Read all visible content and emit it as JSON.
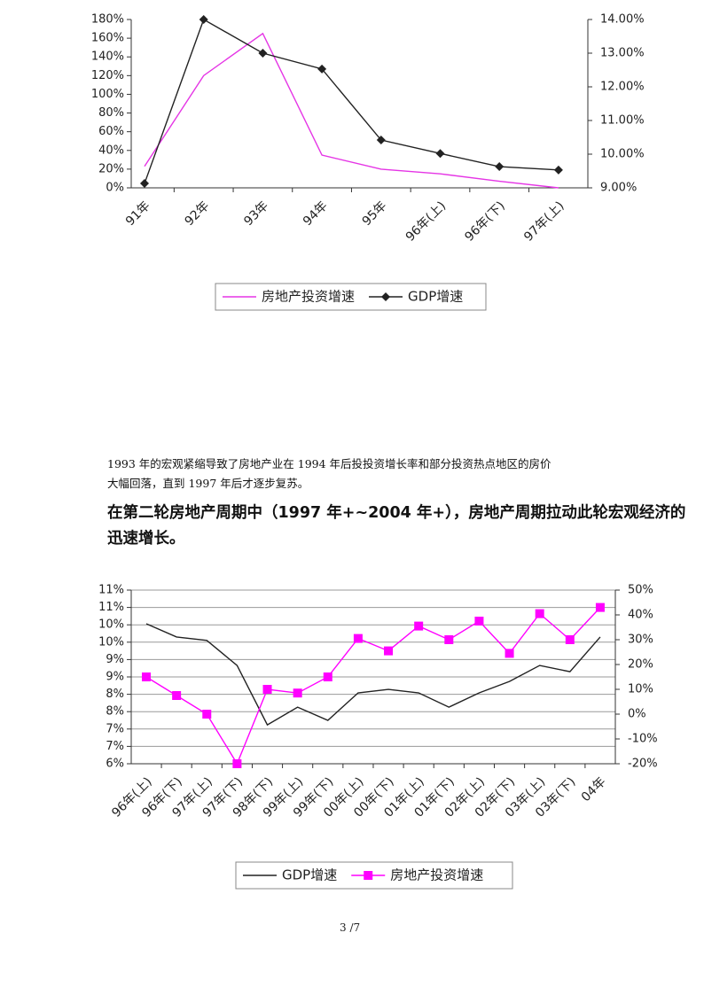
{
  "chart_data": [
    {
      "type": "line",
      "categories": [
        "91年",
        "92年",
        "93年",
        "94年",
        "95年",
        "96年(上)",
        "96年(下)",
        "97年(上)"
      ],
      "series": [
        {
          "name": "房地产投资增速",
          "color": "#e535e5",
          "values": [
            23,
            120,
            165,
            35,
            20,
            15,
            7,
            0
          ]
        },
        {
          "name": "GDP增速",
          "color": "#222222",
          "marker": "diamond",
          "axis": "y2",
          "values": [
            9.13,
            14.0,
            13.0,
            12.53,
            10.42,
            10.02,
            9.63,
            9.53
          ]
        }
      ],
      "ylim": [
        0,
        180
      ],
      "yticks": [
        {
          "value": 0,
          "label": "0%"
        },
        {
          "value": 20,
          "label": "20%"
        },
        {
          "value": 40,
          "label": "40%"
        },
        {
          "value": 60,
          "label": "60%"
        },
        {
          "value": 80,
          "label": "80%"
        },
        {
          "value": 100,
          "label": "100%"
        },
        {
          "value": 120,
          "label": "120%"
        },
        {
          "value": 140,
          "label": "140%"
        },
        {
          "value": 160,
          "label": "160%"
        },
        {
          "value": 180,
          "label": "180%"
        }
      ],
      "y2lim": [
        9,
        14
      ],
      "y2ticks": [
        {
          "value": 9,
          "label": "9.00%"
        },
        {
          "value": 10,
          "label": "10.00%"
        },
        {
          "value": 11,
          "label": "11.00%"
        },
        {
          "value": 12,
          "label": "12.00%"
        },
        {
          "value": 13,
          "label": "13.00%"
        },
        {
          "value": 14,
          "label": "14.00%"
        }
      ],
      "grid": false
    },
    {
      "type": "line",
      "categories": [
        "96年(上)",
        "96年(下)",
        "97年(上)",
        "97年(下)",
        "98年(下)",
        "99年(上)",
        "99年(下)",
        "00年(上)",
        "00年(下)",
        "01年(上)",
        "01年(下)",
        "02年(上)",
        "02年(下)",
        "03年(上)",
        "03年(下)",
        "04年"
      ],
      "series": [
        {
          "name": "GDP增速",
          "color": "#222222",
          "values": [
            10.03,
            9.65,
            9.55,
            8.83,
            7.12,
            7.63,
            7.25,
            8.04,
            8.14,
            8.04,
            7.63,
            8.04,
            8.37,
            8.83,
            8.65,
            9.65
          ]
        },
        {
          "name": "房地产投资增速",
          "color": "#ff00ff",
          "marker": "square",
          "axis": "y2",
          "values": [
            15,
            7.5,
            0,
            -20,
            10,
            8.5,
            15,
            30.5,
            25.5,
            35.5,
            30,
            37.5,
            24.5,
            40.5,
            30,
            43
          ]
        }
      ],
      "ylim": [
        6,
        11
      ],
      "yticks": [
        {
          "value": 6,
          "label": "6%"
        },
        {
          "value": 6.5,
          "label": "7%"
        },
        {
          "value": 7,
          "label": "7%"
        },
        {
          "value": 7.5,
          "label": "8%"
        },
        {
          "value": 8,
          "label": "8%"
        },
        {
          "value": 8.5,
          "label": "9%"
        },
        {
          "value": 9,
          "label": "9%"
        },
        {
          "value": 9.5,
          "label": "10%"
        },
        {
          "value": 10,
          "label": "10%"
        },
        {
          "value": 10.5,
          "label": "11%"
        },
        {
          "value": 11,
          "label": "11%"
        }
      ],
      "y2lim": [
        -20,
        50
      ],
      "y2ticks": [
        {
          "value": -20,
          "label": "-20%"
        },
        {
          "value": -10,
          "label": "-10%"
        },
        {
          "value": 0,
          "label": "0%"
        },
        {
          "value": 10,
          "label": "10%"
        },
        {
          "value": 20,
          "label": "20%"
        },
        {
          "value": 30,
          "label": "30%"
        },
        {
          "value": 40,
          "label": "40%"
        },
        {
          "value": 50,
          "label": "50%"
        }
      ],
      "grid": true
    }
  ],
  "text": {
    "paragraph": [
      "1993 年的宏观紧缩导致了房地产业在 1994 年后投投资增长率和部分投资热点地区的房价",
      "大幅回落，直到 1997 年后才逐步复苏。"
    ],
    "heading": [
      "在第二轮房地产周期中（1997 年+~2004 年+），房地产周期拉动此轮宏观经济的",
      "迅速增长。"
    ],
    "page_number": "3 /7"
  }
}
